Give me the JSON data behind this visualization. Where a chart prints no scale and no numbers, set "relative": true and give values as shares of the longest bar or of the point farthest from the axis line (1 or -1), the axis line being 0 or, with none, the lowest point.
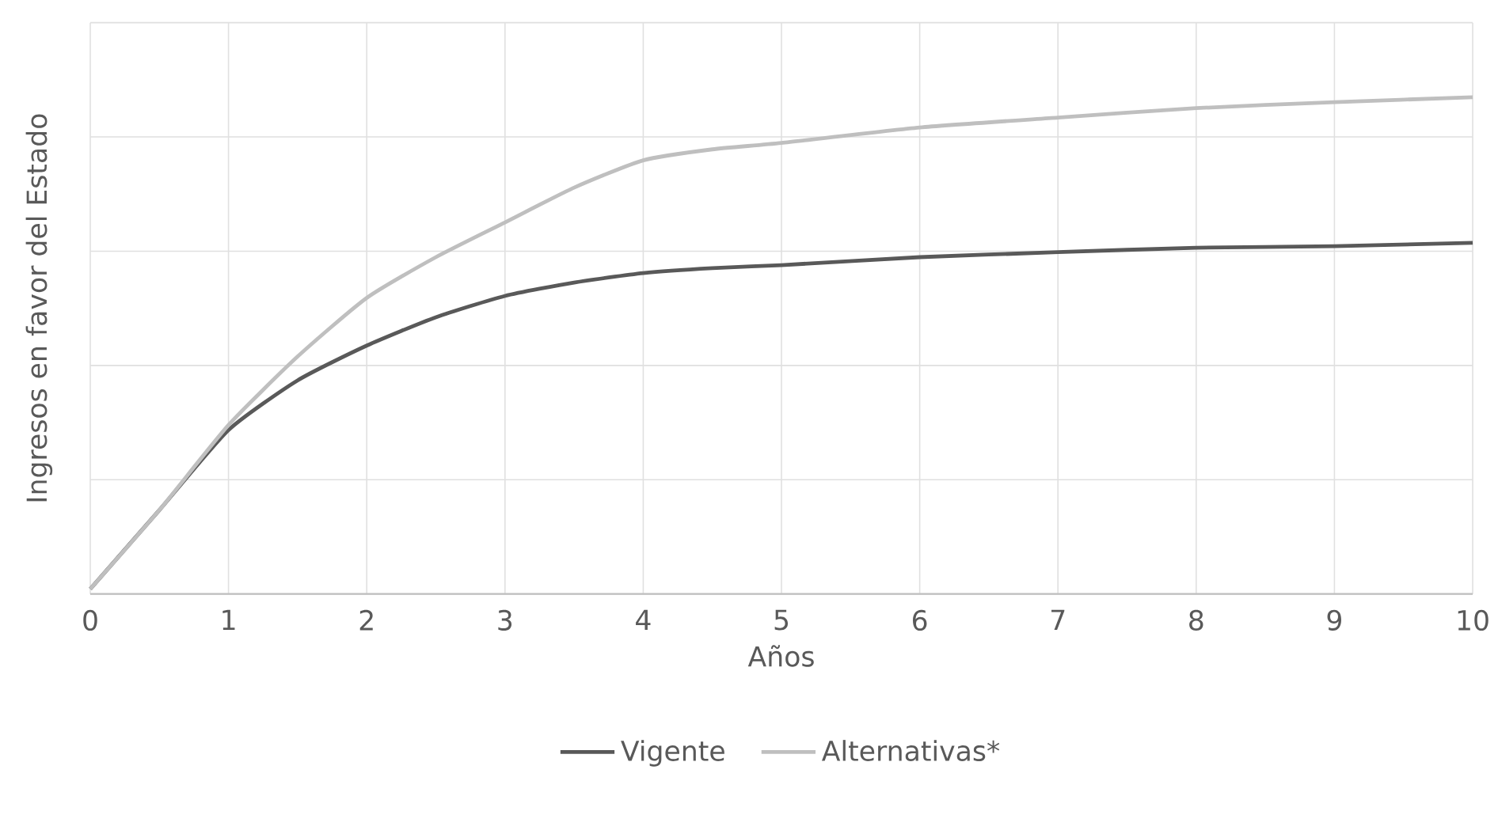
{
  "chart_data": {
    "type": "line",
    "xlabel": "Años",
    "ylabel": "Ingresos en favor del Estado",
    "relative": true,
    "x": [
      0,
      0.5,
      1,
      1.5,
      2,
      2.5,
      3,
      3.5,
      4,
      4.5,
      5,
      6,
      7,
      8,
      9,
      10
    ],
    "series": [
      {
        "name": "Vigente",
        "color": "#595959",
        "values": [
          0.01,
          0.169,
          0.33,
          0.43,
          0.5,
          0.557,
          0.6,
          0.627,
          0.646,
          0.656,
          0.662,
          0.678,
          0.688,
          0.697,
          0.7,
          0.707
        ]
      },
      {
        "name": "Alternativas*",
        "color": "#bfbfbf",
        "values": [
          0.01,
          0.169,
          0.34,
          0.478,
          0.596,
          0.678,
          0.748,
          0.818,
          0.873,
          0.895,
          0.908,
          0.939,
          0.959,
          0.978,
          0.99,
          1
        ]
      }
    ],
    "xlim": [
      0,
      10
    ],
    "xticks": [
      0,
      1,
      2,
      3,
      4,
      5,
      6,
      7,
      8,
      9,
      10
    ],
    "grid": true,
    "legend": "bottom"
  }
}
